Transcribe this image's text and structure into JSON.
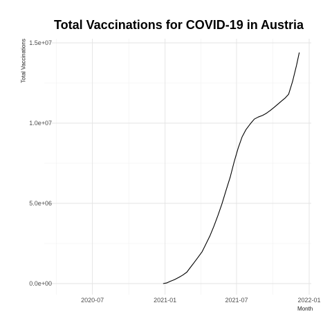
{
  "chart_data": {
    "type": "line",
    "title": "Total Vaccinations for COVID-19 in Austria",
    "xlabel": "Month",
    "ylabel": "Total Vaccinations",
    "x_ticks": [
      "2020-07",
      "2021-01",
      "2021-07",
      "2022-01"
    ],
    "y_ticks": [
      "0.0e+00",
      "5.0e+06",
      "1.0e+07",
      "1.5e+07"
    ],
    "y_tick_values": [
      0,
      5000000,
      10000000,
      15000000
    ],
    "xlim": [
      "2020-03-01",
      "2022-01-01"
    ],
    "ylim": [
      0,
      15000000
    ],
    "grid": true,
    "line_color": "#000000",
    "series": [
      {
        "x": [
          "2020-12-27",
          "2021-01-05",
          "2021-01-15",
          "2021-01-25",
          "2021-02-05",
          "2021-02-15",
          "2021-02-25",
          "2021-03-05",
          "2021-03-15",
          "2021-03-25",
          "2021-04-05",
          "2021-04-15",
          "2021-04-25",
          "2021-05-05",
          "2021-05-15",
          "2021-05-25",
          "2021-06-05",
          "2021-06-15",
          "2021-06-25",
          "2021-07-05",
          "2021-07-15",
          "2021-07-25",
          "2021-08-05",
          "2021-08-15",
          "2021-08-25",
          "2021-09-05",
          "2021-09-15",
          "2021-09-25",
          "2021-10-05",
          "2021-10-15",
          "2021-10-25",
          "2021-11-01",
          "2021-11-10",
          "2021-11-20",
          "2021-11-30",
          "2021-12-07"
        ],
        "values": [
          0,
          40000,
          150000,
          250000,
          390000,
          530000,
          710000,
          970000,
          1290000,
          1620000,
          1990000,
          2490000,
          2990000,
          3590000,
          4250000,
          4970000,
          5850000,
          6630000,
          7580000,
          8440000,
          9140000,
          9600000,
          9960000,
          10250000,
          10380000,
          10480000,
          10620000,
          10800000,
          11000000,
          11210000,
          11420000,
          11560000,
          11800000,
          12600000,
          13600000,
          14400000
        ]
      }
    ]
  }
}
